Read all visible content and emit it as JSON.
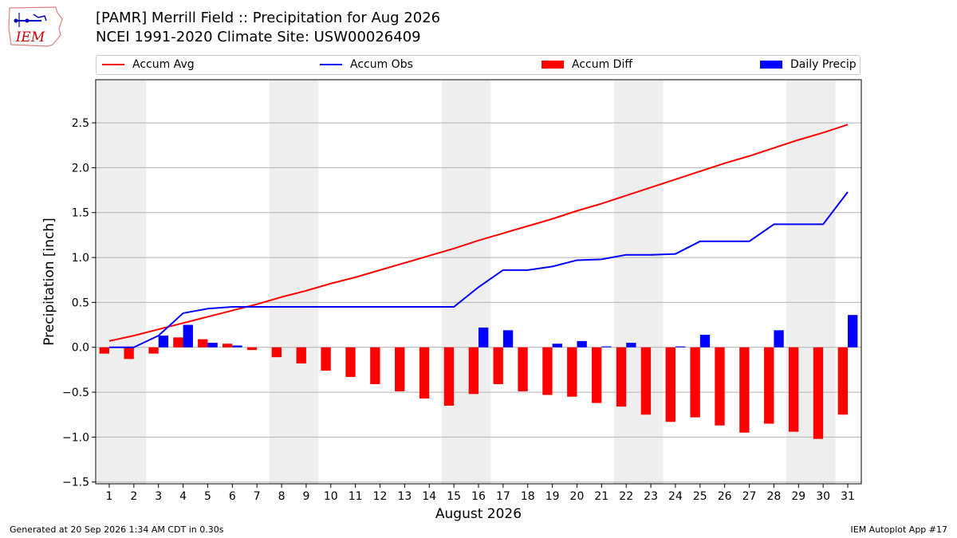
{
  "header": {
    "title_line1": "[PAMR] Merrill Field :: Precipitation for Aug 2026",
    "title_line2": "NCEI 1991-2020 Climate Site: USW00026409",
    "logo_text": "IEM"
  },
  "footer": {
    "generated": "Generated at 20 Sep 2026 1:34 AM CDT in 0.30s",
    "app": "IEM Autoplot App #17"
  },
  "colors": {
    "accum_avg": "#ff0000",
    "accum_obs": "#0000ff",
    "accum_diff": "#ff0000",
    "daily_precip": "#0000ff",
    "weekend_shade": "#eeeeee",
    "grid": "#b0b0b0"
  },
  "chart_data": {
    "type": "bar",
    "xlabel": "August 2026",
    "ylabel": "Precipitation [inch]",
    "ylim": [
      -1.52,
      2.98
    ],
    "yticks": [
      -1.5,
      -1.0,
      -0.5,
      0.0,
      0.5,
      1.0,
      1.5,
      2.0,
      2.5
    ],
    "ytick_labels": [
      "−1.5",
      "−1.0",
      "−0.5",
      "0.0",
      "0.5",
      "1.0",
      "1.5",
      "2.0",
      "2.5"
    ],
    "grid": "horizontal",
    "legend_position": "top",
    "legend": [
      "Accum Avg",
      "Accum Obs",
      "Accum Diff",
      "Daily Precip"
    ],
    "weekend_spans": [
      [
        0.5,
        2.5
      ],
      [
        7.5,
        9.5
      ],
      [
        14.5,
        16.5
      ],
      [
        21.5,
        23.5
      ],
      [
        28.5,
        30.5
      ]
    ],
    "x": [
      1,
      2,
      3,
      4,
      5,
      6,
      7,
      8,
      9,
      10,
      11,
      12,
      13,
      14,
      15,
      16,
      17,
      18,
      19,
      20,
      21,
      22,
      23,
      24,
      25,
      26,
      27,
      28,
      29,
      30,
      31
    ],
    "series": [
      {
        "name": "Accum Avg",
        "kind": "line",
        "values": [
          0.07,
          0.13,
          0.2,
          0.27,
          0.34,
          0.41,
          0.48,
          0.56,
          0.63,
          0.71,
          0.78,
          0.86,
          0.94,
          1.02,
          1.1,
          1.19,
          1.27,
          1.35,
          1.43,
          1.52,
          1.6,
          1.69,
          1.78,
          1.87,
          1.96,
          2.05,
          2.13,
          2.22,
          2.31,
          2.39,
          2.48
        ]
      },
      {
        "name": "Accum Obs",
        "kind": "line",
        "values": [
          0.0,
          0.0,
          0.13,
          0.38,
          0.43,
          0.45,
          0.45,
          0.45,
          0.45,
          0.45,
          0.45,
          0.45,
          0.45,
          0.45,
          0.45,
          0.67,
          0.86,
          0.86,
          0.9,
          0.97,
          0.98,
          1.03,
          1.03,
          1.04,
          1.18,
          1.18,
          1.18,
          1.37,
          1.37,
          1.37,
          1.73
        ]
      },
      {
        "name": "Accum Diff",
        "kind": "bar",
        "values": [
          -0.07,
          -0.13,
          -0.07,
          0.11,
          0.09,
          0.04,
          -0.03,
          -0.11,
          -0.18,
          -0.26,
          -0.33,
          -0.41,
          -0.49,
          -0.57,
          -0.65,
          -0.52,
          -0.41,
          -0.49,
          -0.53,
          -0.55,
          -0.62,
          -0.66,
          -0.75,
          -0.83,
          -0.78,
          -0.87,
          -0.95,
          -0.85,
          -0.94,
          -1.02,
          -0.75
        ]
      },
      {
        "name": "Daily Precip",
        "kind": "bar",
        "values": [
          0.0,
          0.0,
          0.13,
          0.25,
          0.05,
          0.02,
          0.0,
          0.0,
          0.0,
          0.0,
          0.0,
          0.0,
          0.0,
          0.0,
          0.0,
          0.22,
          0.19,
          0.0,
          0.04,
          0.07,
          0.01,
          0.05,
          0.0,
          0.01,
          0.14,
          0.0,
          0.0,
          0.19,
          0.0,
          0.0,
          0.36
        ]
      }
    ]
  }
}
